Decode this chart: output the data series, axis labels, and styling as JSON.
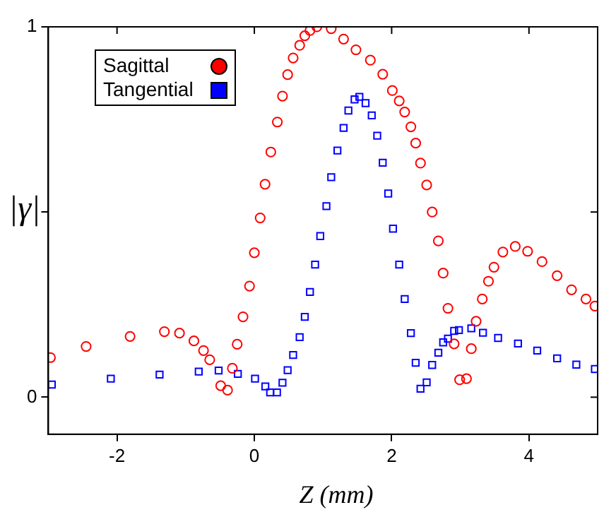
{
  "chart_data": {
    "type": "scatter",
    "xlabel": "Z (mm)",
    "ylabel": "|γ|",
    "xlim": [
      -3,
      5
    ],
    "xticks": [
      -2,
      0,
      2,
      4
    ],
    "ylim": [
      -0.1,
      1
    ],
    "yticks": [
      0,
      {
        "value": 0.5,
        "label": null
      },
      1
    ],
    "grid": false,
    "legend": "top left",
    "series": [
      {
        "name": "Sagittal",
        "color": "#ff0000",
        "marker": "circle",
        "x": [
          -2.97,
          -2.45,
          -1.81,
          -1.31,
          -1.09,
          -0.88,
          -0.74,
          -0.65,
          -0.49,
          -0.39,
          -0.32,
          -0.25,
          -0.165,
          -0.07,
          0.0,
          0.085,
          0.156,
          0.24,
          0.335,
          0.41,
          0.485,
          0.565,
          0.66,
          0.735,
          0.81,
          0.91,
          1.12,
          1.3,
          1.48,
          1.69,
          1.87,
          2.01,
          2.11,
          2.19,
          2.28,
          2.35,
          2.42,
          2.51,
          2.59,
          2.68,
          2.75,
          2.82,
          2.91,
          2.99,
          3.09,
          3.16,
          3.23,
          3.32,
          3.41,
          3.49,
          3.62,
          3.8,
          3.98,
          4.19,
          4.41,
          4.62,
          4.83,
          4.96
        ],
        "values": [
          0.107,
          0.137,
          0.164,
          0.177,
          0.173,
          0.152,
          0.126,
          0.101,
          0.031,
          0.019,
          0.078,
          0.143,
          0.217,
          0.3,
          0.39,
          0.484,
          0.575,
          0.662,
          0.743,
          0.813,
          0.871,
          0.916,
          0.95,
          0.976,
          0.99,
          1.0,
          0.995,
          0.967,
          0.938,
          0.91,
          0.872,
          0.828,
          0.8,
          0.77,
          0.73,
          0.686,
          0.632,
          0.573,
          0.5,
          0.422,
          0.335,
          0.24,
          0.144,
          0.047,
          0.05,
          0.131,
          0.205,
          0.265,
          0.313,
          0.351,
          0.392,
          0.407,
          0.394,
          0.366,
          0.328,
          0.29,
          0.265,
          0.246
        ]
      },
      {
        "name": "Tangential",
        "color": "#0000ff",
        "marker": "square",
        "x": [
          -2.95,
          -2.09,
          -1.38,
          -0.81,
          -0.52,
          -0.24,
          0.01,
          0.16,
          0.23,
          0.33,
          0.41,
          0.485,
          0.565,
          0.66,
          0.735,
          0.81,
          0.885,
          0.96,
          1.05,
          1.12,
          1.21,
          1.3,
          1.37,
          1.46,
          1.53,
          1.62,
          1.71,
          1.79,
          1.87,
          1.95,
          2.02,
          2.11,
          2.19,
          2.28,
          2.35,
          2.42,
          2.51,
          2.59,
          2.68,
          2.75,
          2.82,
          2.91,
          2.98,
          3.16,
          3.33,
          3.55,
          3.84,
          4.12,
          4.41,
          4.69,
          4.96
        ],
        "values": [
          0.034,
          0.05,
          0.061,
          0.069,
          0.072,
          0.063,
          0.05,
          0.029,
          0.013,
          0.013,
          0.039,
          0.073,
          0.114,
          0.162,
          0.217,
          0.284,
          0.358,
          0.435,
          0.516,
          0.594,
          0.666,
          0.727,
          0.774,
          0.804,
          0.811,
          0.794,
          0.761,
          0.706,
          0.633,
          0.55,
          0.455,
          0.358,
          0.265,
          0.173,
          0.093,
          0.023,
          0.04,
          0.087,
          0.12,
          0.148,
          0.158,
          0.179,
          0.181,
          0.186,
          0.174,
          0.16,
          0.145,
          0.126,
          0.105,
          0.088,
          0.076
        ]
      }
    ]
  }
}
